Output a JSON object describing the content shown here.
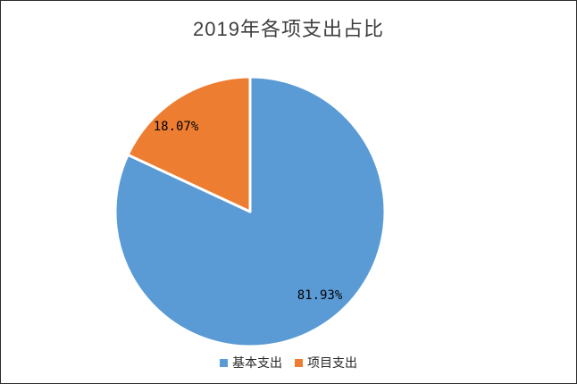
{
  "frame": {
    "background": "#ffffff",
    "border_color": "#2b2b2b"
  },
  "chart_data": {
    "type": "pie",
    "title": "2019年各项支出占比",
    "categories": [
      "基本支出",
      "项目支出"
    ],
    "values": [
      81.93,
      18.07
    ],
    "data_labels": [
      "81.93%",
      "18.07%"
    ],
    "colors": [
      "#5B9BD5",
      "#ED7D31"
    ],
    "start_angle_deg": 0,
    "direction": "clockwise",
    "slice_border_color": "#ffffff",
    "legend_position": "bottom",
    "title_color": "#3f3f3f",
    "data_label_color": "#000000"
  }
}
